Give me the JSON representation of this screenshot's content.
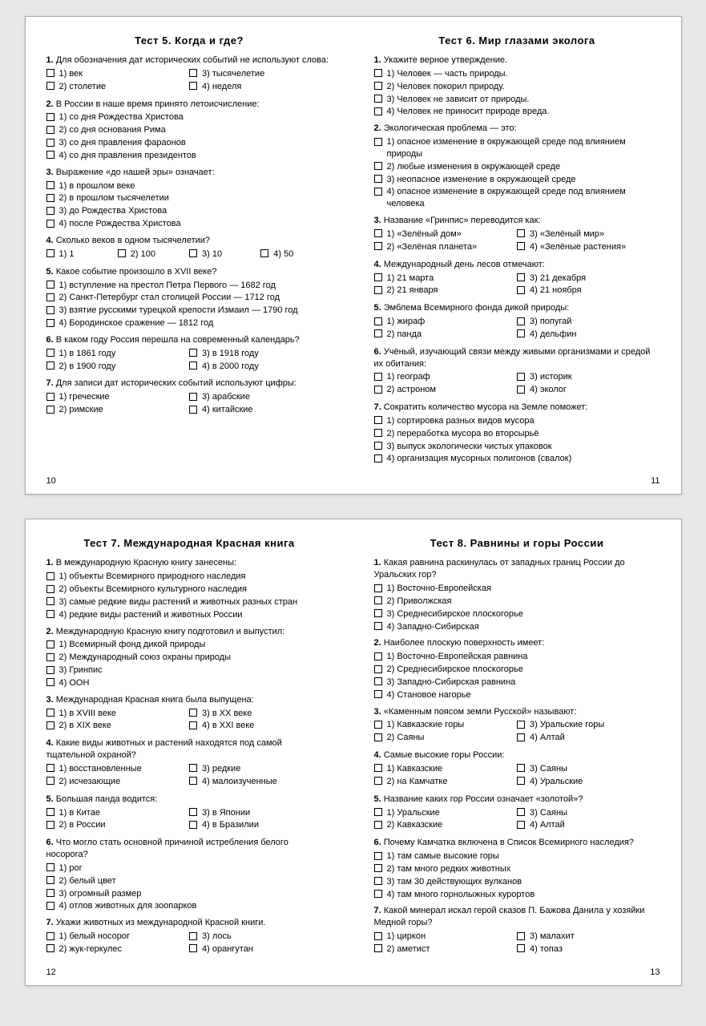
{
  "spreads": [
    {
      "left": {
        "pageNum": "10",
        "title": "Тест 5. Когда и где?",
        "questions": [
          {
            "num": "1.",
            "text": "Для обозначения дат исторических событий не используют слова:",
            "layout": "2col",
            "opts": [
              "1) век",
              "3) тысячелетие",
              "2) столетие",
              "4) неделя"
            ]
          },
          {
            "num": "2.",
            "text": "В России в наше время принято летоисчисление:",
            "layout": "list",
            "opts": [
              "1) со дня Рождества Христова",
              "2) со дня основания Рима",
              "3) со дня правления фараонов",
              "4) со дня правления президентов"
            ]
          },
          {
            "num": "3.",
            "text": "Выражение «до нашей эры» означает:",
            "layout": "list",
            "opts": [
              "1) в прошлом веке",
              "2) в прошлом тысячелетии",
              "3) до Рождества Христова",
              "4) после Рождества Христова"
            ]
          },
          {
            "num": "4.",
            "text": "Сколько веков в одном тысячелетии?",
            "layout": "4col",
            "opts": [
              "1) 1",
              "2) 100",
              "3) 10",
              "4) 50"
            ]
          },
          {
            "num": "5.",
            "text": "Какое событие произошло в XVII веке?",
            "layout": "list",
            "opts": [
              "1) вступление на престол Петра Первого — 1682 год",
              "2) Санкт-Петербург стал столицей России — 1712 год",
              "3) взятие русскими турецкой крепости Измаил — 1790 год",
              "4) Бородинское сражение — 1812 год"
            ]
          },
          {
            "num": "6.",
            "text": "В каком году Россия перешла на современный календарь?",
            "layout": "2col",
            "opts": [
              "1) в 1861 году",
              "3) в 1918 году",
              "2) в 1900 году",
              "4) в 2000 году"
            ]
          },
          {
            "num": "7.",
            "text": "Для записи дат исторических событий используют цифры:",
            "layout": "2col",
            "opts": [
              "1) греческие",
              "3) арабские",
              "2) римские",
              "4) китайские"
            ]
          }
        ]
      },
      "right": {
        "pageNum": "11",
        "title": "Тест 6. Мир глазами эколога",
        "questions": [
          {
            "num": "1.",
            "text": "Укажите верное утверждение.",
            "layout": "list",
            "opts": [
              "1) Человек — часть природы.",
              "2) Человек покорил природу.",
              "3) Человек не зависит от природы.",
              "4) Человек не приносит природе вреда."
            ]
          },
          {
            "num": "2.",
            "text": "Экологическая проблема — это:",
            "layout": "list",
            "opts": [
              "1) опасное изменение в окружающей среде под влиянием природы",
              "2) любые изменения в окружающей среде",
              "3) неопасное изменение в окружающей среде",
              "4) опасное изменение в окружающей среде под влиянием человека"
            ]
          },
          {
            "num": "3.",
            "text": "Название «Гринпис» переводится как:",
            "layout": "2col",
            "opts": [
              "1) «Зелёный дом»",
              "3) «Зелёный мир»",
              "2) «Зелёная планета»",
              "4) «Зелёные растения»"
            ]
          },
          {
            "num": "4.",
            "text": "Международный день лесов отмечают:",
            "layout": "2col",
            "opts": [
              "1) 21 марта",
              "3) 21 декабря",
              "2) 21 января",
              "4) 21 ноября"
            ]
          },
          {
            "num": "5.",
            "text": "Эмблема Всемирного фонда дикой природы:",
            "layout": "2col",
            "opts": [
              "1) жираф",
              "3) попугай",
              "2) панда",
              "4) дельфин"
            ]
          },
          {
            "num": "6.",
            "text": "Учёный, изучающий связи между живыми организмами и средой их обитания:",
            "layout": "2col",
            "opts": [
              "1) географ",
              "3) историк",
              "2) астроном",
              "4) эколог"
            ]
          },
          {
            "num": "7.",
            "text": "Сократить количество мусора на Земле поможет:",
            "layout": "list",
            "opts": [
              "1) сортировка разных видов мусора",
              "2) переработка мусора во вторсырьё",
              "3) выпуск экологически чистых упаковок",
              "4) организация мусорных полигонов (свалок)"
            ]
          }
        ]
      }
    },
    {
      "left": {
        "pageNum": "12",
        "title": "Тест 7. Международная Красная книга",
        "questions": [
          {
            "num": "1.",
            "text": "В международную Красную книгу занесены:",
            "layout": "list",
            "opts": [
              "1) объекты Всемирного природного наследия",
              "2) объекты Всемирного культурного наследия",
              "3) самые редкие виды растений и животных разных стран",
              "4) редкие виды растений и животных России"
            ]
          },
          {
            "num": "2.",
            "text": "Международную Красную книгу подготовил и выпустил:",
            "layout": "list",
            "opts": [
              "1) Всемирный фонд дикой природы",
              "2) Международный союз охраны природы",
              "3) Гринпис",
              "4) ООН"
            ]
          },
          {
            "num": "3.",
            "text": "Международная Красная книга была выпущена:",
            "layout": "2col",
            "opts": [
              "1) в XVIII веке",
              "3) в XX веке",
              "2) в XIX веке",
              "4) в XXI веке"
            ]
          },
          {
            "num": "4.",
            "text": "Какие виды животных и растений находятся под самой тщательной охраной?",
            "layout": "2col",
            "opts": [
              "1) восстановленные",
              "3) редкие",
              "2) исчезающие",
              "4) малоизученные"
            ]
          },
          {
            "num": "5.",
            "text": "Большая панда водится:",
            "layout": "2col",
            "opts": [
              "1) в Китае",
              "3) в Японии",
              "2) в России",
              "4) в Бразилии"
            ]
          },
          {
            "num": "6.",
            "text": "Что могло стать основной причиной истребления белого носорога?",
            "layout": "list",
            "opts": [
              "1) рог",
              "2) белый цвет",
              "3) огромный размер",
              "4) отлов животных для зоопарков"
            ]
          },
          {
            "num": "7.",
            "text": "Укажи животных из международной Красной книги.",
            "layout": "2col",
            "opts": [
              "1) белый носорог",
              "3) лось",
              "2) жук-геркулес",
              "4) орангутан"
            ]
          }
        ]
      },
      "right": {
        "pageNum": "13",
        "title": "Тест 8. Равнины и горы России",
        "questions": [
          {
            "num": "1.",
            "text": "Какая равнина раскинулась от западных границ России до Уральских гор?",
            "layout": "list",
            "opts": [
              "1) Восточно-Европейская",
              "2) Приволжская",
              "3) Среднесибирское плоскогорье",
              "4) Западно-Сибирская"
            ]
          },
          {
            "num": "2.",
            "text": "Наиболее плоскую поверхность имеет:",
            "layout": "list",
            "opts": [
              "1) Восточно-Европейская равнина",
              "2) Среднесибирское плоскогорье",
              "3) Западно-Сибирская равнина",
              "4) Становое нагорье"
            ]
          },
          {
            "num": "3.",
            "text": "«Каменным поясом земли Русской» называют:",
            "layout": "2col",
            "opts": [
              "1) Кавказские горы",
              "3) Уральские горы",
              "2) Саяны",
              "4) Алтай"
            ]
          },
          {
            "num": "4.",
            "text": "Самые высокие горы России:",
            "layout": "2col",
            "opts": [
              "1) Кавказские",
              "3) Саяны",
              "2) на Камчатке",
              "4) Уральские"
            ]
          },
          {
            "num": "5.",
            "text": "Название каких гор России означает «золотой»?",
            "layout": "2col",
            "opts": [
              "1) Уральские",
              "3) Саяны",
              "2) Кавказские",
              "4) Алтай"
            ]
          },
          {
            "num": "6.",
            "text": "Почему Камчатка включена в Список Всемирного наследия?",
            "layout": "list",
            "opts": [
              "1) там самые высокие горы",
              "2) там много редких животных",
              "3) там 30 действующих вулканов",
              "4) там много горнолыжных курортов"
            ]
          },
          {
            "num": "7.",
            "text": "Какой минерал искал герой сказов П. Бажова Данила у хозяйки Медной горы?",
            "layout": "2col",
            "opts": [
              "1) циркон",
              "3) малахит",
              "2) аметист",
              "4) топаз"
            ]
          }
        ]
      }
    }
  ]
}
